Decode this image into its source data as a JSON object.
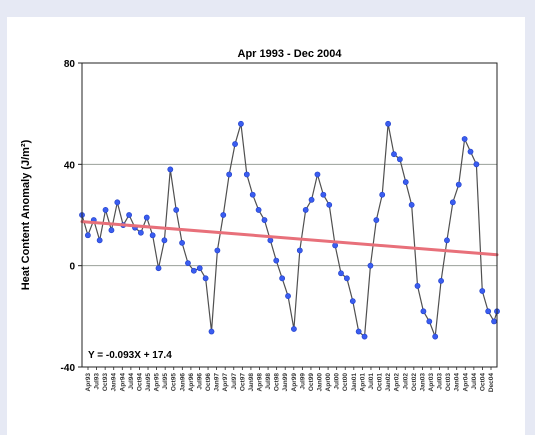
{
  "chart_data": {
    "type": "line",
    "title": "Apr 1993 - Dec 2004",
    "ylabel": "Heat Content Anomaly (J/m²)",
    "xlabel": "",
    "ylim": [
      -40,
      80
    ],
    "yticks": [
      -40,
      0,
      40,
      80
    ],
    "grid": true,
    "annotation": "Y = -0.093X + 17.4",
    "series": [
      {
        "color": "#3a5df0",
        "line_color": "#505050",
        "x": [
          0,
          2,
          4,
          6,
          8,
          10,
          12,
          14,
          16,
          18,
          20,
          22,
          24,
          26,
          28,
          30,
          32,
          34,
          36,
          38,
          40,
          42,
          44,
          46,
          48,
          50,
          52,
          54,
          56,
          58,
          60,
          62,
          64,
          66,
          68,
          70,
          72,
          74,
          76,
          78,
          80,
          82,
          84,
          86,
          88,
          90,
          92,
          94,
          96,
          98,
          100,
          102,
          104,
          106,
          108,
          110,
          112,
          114,
          116,
          118,
          120,
          122,
          124,
          126,
          128,
          130,
          132,
          134,
          136,
          138,
          140,
          141
        ],
        "values": [
          20,
          12,
          18,
          10,
          22,
          14,
          25,
          16,
          20,
          15,
          13,
          19,
          12,
          -1,
          10,
          38,
          22,
          9,
          1,
          -2,
          -1,
          -5,
          -26,
          6,
          20,
          36,
          48,
          56,
          36,
          28,
          22,
          18,
          10,
          2,
          -5,
          -12,
          -25,
          6,
          22,
          26,
          36,
          28,
          24,
          8,
          -3,
          -5,
          -14,
          -26,
          -28,
          0,
          18,
          28,
          56,
          44,
          42,
          33,
          24,
          -8,
          -18,
          -22,
          -28,
          -6,
          10,
          25,
          32,
          50,
          45,
          40,
          -10,
          -18,
          -22,
          -18
        ]
      },
      {
        "color": "#e8707a",
        "x": [
          0,
          141
        ],
        "values": [
          17.4,
          4.3
        ]
      }
    ],
    "x_tick_labels": [
      "Apr93",
      "Jul93",
      "Oct93",
      "Jan94",
      "Apr94",
      "Jul94",
      "Oct94",
      "Jan95",
      "Apr95",
      "Jul95",
      "Oct95",
      "Jan96",
      "Apr96",
      "Jul96",
      "Oct96",
      "Jan97",
      "Apr97",
      "Jul97",
      "Oct97",
      "Jan98",
      "Apr98",
      "Jul98",
      "Oct98",
      "Jan99",
      "Apr99",
      "Jul99",
      "Oct99",
      "Jan00",
      "Apr00",
      "Jul00",
      "Oct00",
      "Jan01",
      "Apr01",
      "Jul01",
      "Oct01",
      "Jan02",
      "Apr02",
      "Jul02",
      "Oct02",
      "Jan03",
      "Apr03",
      "Jul03",
      "Oct03",
      "Jan04",
      "Apr04",
      "Jul04",
      "Oct04",
      "Dec04"
    ]
  }
}
